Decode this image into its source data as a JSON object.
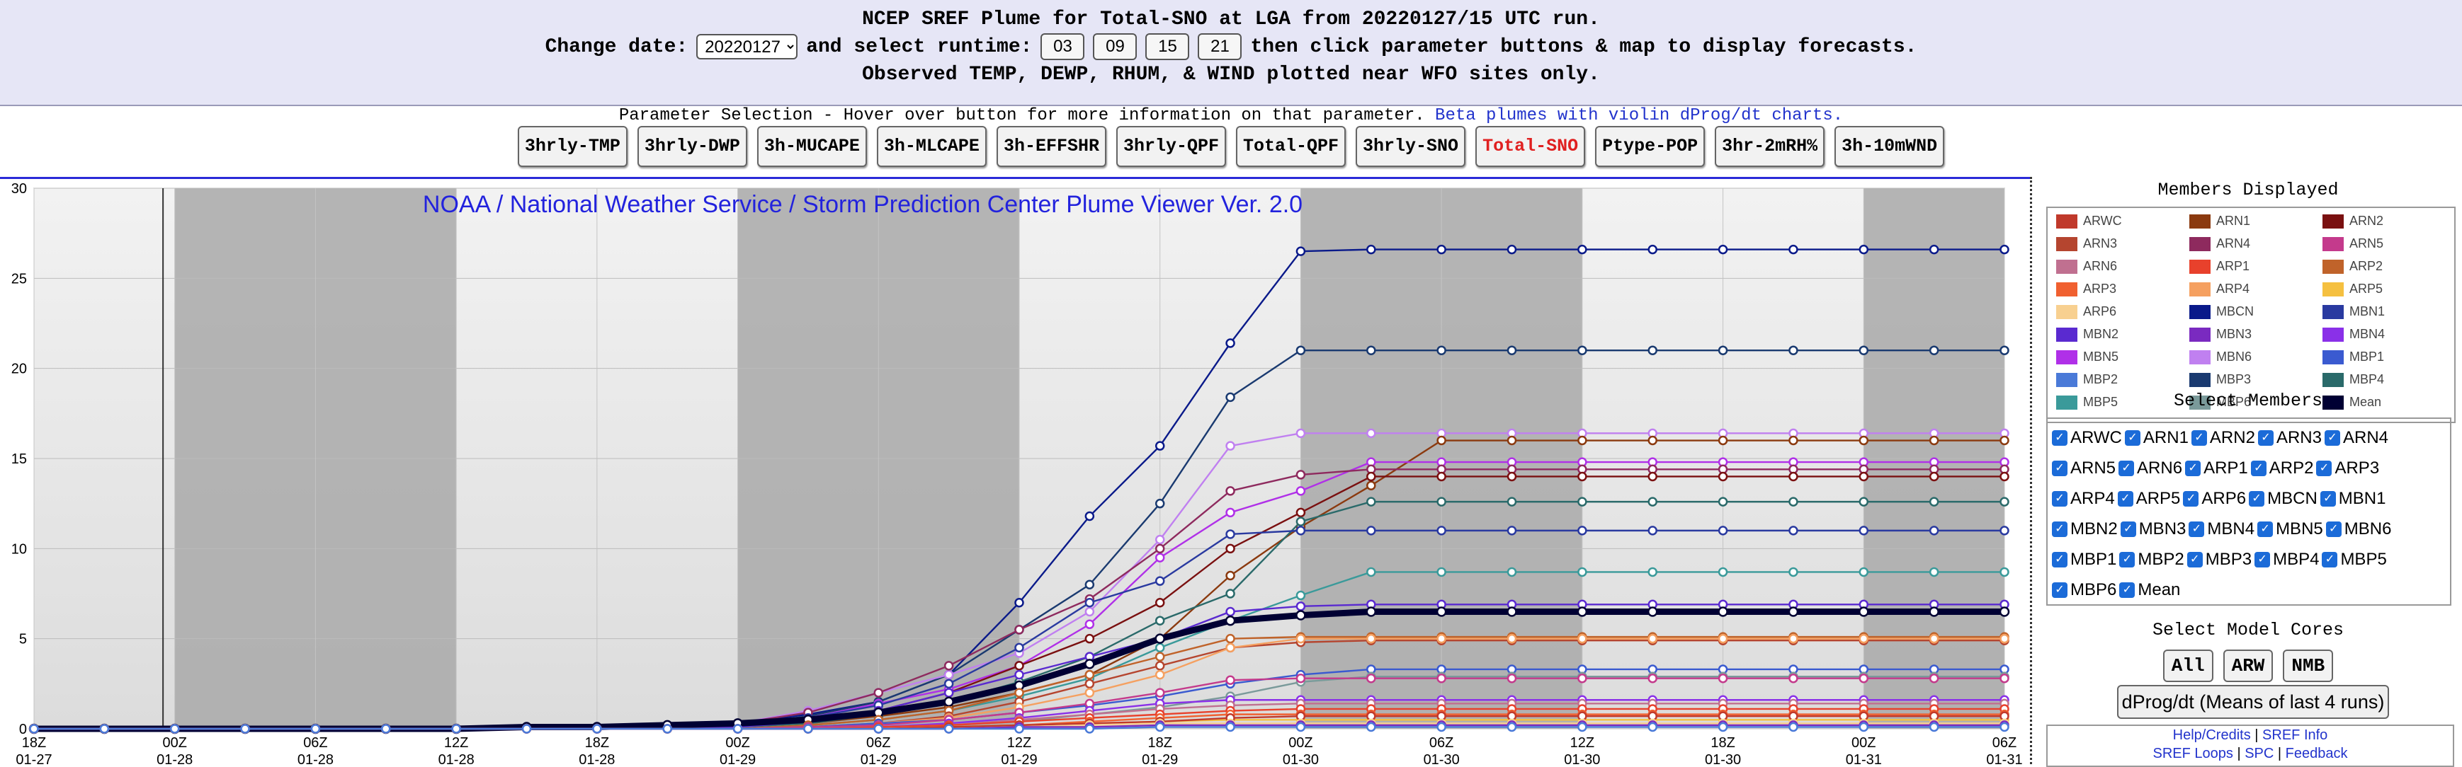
{
  "header": {
    "line1": "NCEP SREF Plume for Total-SNO at LGA from 20220127/15 UTC run.",
    "change_date_label": "Change date:",
    "date_value": "20220127",
    "select_runtime_label": "and select runtime:",
    "runtimes": [
      "03",
      "09",
      "15",
      "21"
    ],
    "line2_tail": "then click parameter buttons & map to display forecasts.",
    "line3": "Observed TEMP, DEWP, RHUM, & WIND plotted near WFO sites only."
  },
  "params": {
    "title": "Parameter Selection - Hover over button for more information on that parameter.",
    "beta_link": "Beta plumes with violin dProg/dt charts.",
    "buttons": [
      "3hrly-TMP",
      "3hrly-DWP",
      "3h-MUCAPE",
      "3h-MLCAPE",
      "3h-EFFSHR",
      "3hrly-QPF",
      "Total-QPF",
      "3hrly-SNO",
      "Total-SNO",
      "Ptype-POP",
      "3hr-2mRH%",
      "3h-10mWND"
    ],
    "active": "Total-SNO"
  },
  "side": {
    "members_title": "Members Displayed",
    "select_title": "Select Members",
    "cores_title": "Select Model Cores",
    "core_buttons": [
      "All",
      "ARW",
      "NMB"
    ],
    "dprog_label": "dProg/dt (Means of last 4 runs)",
    "links_row1": [
      "Help/Credits",
      "SREF Info"
    ],
    "links_row2": [
      "SREF Loops",
      "SPC",
      "Feedback"
    ],
    "sep": "|"
  },
  "members": [
    {
      "name": "ARWC",
      "color": "#c0392b"
    },
    {
      "name": "ARN1",
      "color": "#8b3a0f"
    },
    {
      "name": "ARN2",
      "color": "#7a1010"
    },
    {
      "name": "ARN3",
      "color": "#b5452f"
    },
    {
      "name": "ARN4",
      "color": "#8e2a5e"
    },
    {
      "name": "ARN5",
      "color": "#c43a8c"
    },
    {
      "name": "ARN6",
      "color": "#c07090"
    },
    {
      "name": "ARP1",
      "color": "#e8412c"
    },
    {
      "name": "ARP2",
      "color": "#c0632a"
    },
    {
      "name": "ARP3",
      "color": "#f06030"
    },
    {
      "name": "ARP4",
      "color": "#f5a060"
    },
    {
      "name": "ARP5",
      "color": "#f5c040"
    },
    {
      "name": "ARP6",
      "color": "#f8d090"
    },
    {
      "name": "MBCN",
      "color": "#0a1a8a"
    },
    {
      "name": "MBN1",
      "color": "#2a3aa0"
    },
    {
      "name": "MBN2",
      "color": "#5a2ad0"
    },
    {
      "name": "MBN3",
      "color": "#7a2ac0"
    },
    {
      "name": "MBN4",
      "color": "#8a30e8"
    },
    {
      "name": "MBN5",
      "color": "#b030e8"
    },
    {
      "name": "MBN6",
      "color": "#c080f0"
    },
    {
      "name": "MBP1",
      "color": "#3a5ad0"
    },
    {
      "name": "MBP2",
      "color": "#4a7ad8"
    },
    {
      "name": "MBP3",
      "color": "#1a3a70"
    },
    {
      "name": "MBP4",
      "color": "#2a6a6a"
    },
    {
      "name": "MBP5",
      "color": "#3a9a9a"
    },
    {
      "name": "MBP6",
      "color": "#7a9a9a"
    },
    {
      "name": "Mean",
      "color": "#000033"
    }
  ],
  "chart_data": {
    "type": "line",
    "title": "NOAA / National Weather Service / Storm Prediction Center Plume Viewer Ver. 2.0",
    "ylim": [
      0,
      30
    ],
    "yticks": [
      0,
      5,
      10,
      15,
      20,
      25,
      30
    ],
    "xticks": [
      {
        "t": "18Z",
        "d": "01-27"
      },
      {
        "t": "00Z",
        "d": "01-28"
      },
      {
        "t": "06Z",
        "d": "01-28"
      },
      {
        "t": "12Z",
        "d": "01-28"
      },
      {
        "t": "18Z",
        "d": "01-28"
      },
      {
        "t": "00Z",
        "d": "01-29"
      },
      {
        "t": "06Z",
        "d": "01-29"
      },
      {
        "t": "12Z",
        "d": "01-29"
      },
      {
        "t": "18Z",
        "d": "01-29"
      },
      {
        "t": "00Z",
        "d": "01-30"
      },
      {
        "t": "06Z",
        "d": "01-30"
      },
      {
        "t": "12Z",
        "d": "01-30"
      },
      {
        "t": "18Z",
        "d": "01-30"
      },
      {
        "t": "00Z",
        "d": "01-31"
      },
      {
        "t": "06Z",
        "d": "01-31"
      }
    ],
    "x_hours": [
      0,
      3,
      6,
      9,
      12,
      15,
      18,
      21,
      24,
      27,
      30,
      33,
      36,
      39,
      42,
      45,
      48,
      51,
      54,
      57,
      60,
      63,
      66,
      69,
      72,
      75,
      78,
      81,
      84
    ],
    "shaded_periods_hours": [
      [
        6,
        18
      ],
      [
        30,
        42
      ],
      [
        54,
        66
      ],
      [
        78,
        84
      ]
    ],
    "init_marker_hour": 5.5,
    "series": [
      {
        "name": "MBCN",
        "values": [
          0,
          0,
          0,
          0,
          0,
          0,
          0,
          0,
          0,
          0,
          0.3,
          0.8,
          1.5,
          3,
          7,
          11.8,
          15.7,
          21.4,
          26.5,
          26.6,
          26.6,
          26.6,
          26.6,
          26.6,
          26.6,
          26.6,
          26.6,
          26.6,
          26.6
        ]
      },
      {
        "name": "MBP3",
        "values": [
          0,
          0,
          0,
          0,
          0,
          0,
          0,
          0,
          0,
          0,
          0.2,
          0.7,
          1.5,
          3,
          5.5,
          8,
          12.5,
          18.4,
          21,
          21,
          21,
          21,
          21,
          21,
          21,
          21,
          21,
          21,
          21
        ]
      },
      {
        "name": "MBN6",
        "values": [
          0,
          0,
          0,
          0,
          0,
          0,
          0,
          0,
          0,
          0,
          0.3,
          1,
          2,
          3,
          4.2,
          6.5,
          10.5,
          15.7,
          16.4,
          16.4,
          16.4,
          16.4,
          16.4,
          16.4,
          16.4,
          16.4,
          16.4,
          16.4,
          16.4
        ]
      },
      {
        "name": "ARN1",
        "values": [
          0,
          0,
          0,
          0,
          0,
          0,
          0,
          0,
          0,
          0,
          0.1,
          0.3,
          0.7,
          1.2,
          2,
          3,
          5,
          8.5,
          11.2,
          13.5,
          16,
          16,
          16,
          16,
          16,
          16,
          16,
          16,
          16
        ]
      },
      {
        "name": "MBN5",
        "values": [
          0,
          0,
          0,
          0,
          0,
          0,
          0,
          0,
          0,
          0,
          0.2,
          0.6,
          1.4,
          2.2,
          3.5,
          5.8,
          9.5,
          12,
          13.2,
          14.8,
          14.8,
          14.8,
          14.8,
          14.8,
          14.8,
          14.8,
          14.8,
          14.8,
          14.8
        ]
      },
      {
        "name": "ARN4",
        "values": [
          0,
          0,
          0,
          0,
          0,
          0,
          0,
          0,
          0,
          0,
          0.3,
          0.9,
          2,
          3.5,
          5.5,
          7.2,
          10,
          13.2,
          14.1,
          14.4,
          14.4,
          14.4,
          14.4,
          14.4,
          14.4,
          14.4,
          14.4,
          14.4,
          14.4
        ]
      },
      {
        "name": "ARN2",
        "values": [
          0,
          0,
          0,
          0,
          0,
          0,
          0,
          0,
          0,
          0,
          0.1,
          0.4,
          1,
          2,
          3.5,
          5,
          7,
          10,
          12,
          14,
          14,
          14,
          14,
          14,
          14,
          14,
          14,
          14,
          14
        ]
      },
      {
        "name": "MBP4",
        "values": [
          0,
          0,
          0,
          0,
          0,
          0,
          0,
          0,
          0,
          0,
          0.1,
          0.3,
          0.8,
          1.5,
          2.6,
          4,
          6,
          7.5,
          11.5,
          12.6,
          12.6,
          12.6,
          12.6,
          12.6,
          12.6,
          12.6,
          12.6,
          12.6,
          12.6
        ]
      },
      {
        "name": "MBN1",
        "values": [
          0,
          0,
          0,
          0,
          0,
          0,
          0,
          0,
          0,
          0,
          0.2,
          0.6,
          1.3,
          2.5,
          4.5,
          7,
          8.2,
          10.8,
          11,
          11,
          11,
          11,
          11,
          11,
          11,
          11,
          11,
          11,
          11
        ]
      },
      {
        "name": "MBP5",
        "values": [
          0,
          0,
          0,
          0,
          0,
          0,
          0,
          0,
          0,
          0,
          0,
          0.2,
          0.5,
          1,
          1.8,
          2.8,
          4.5,
          6,
          7.4,
          8.7,
          8.7,
          8.7,
          8.7,
          8.7,
          8.7,
          8.7,
          8.7,
          8.7,
          8.7
        ]
      },
      {
        "name": "MBN2",
        "values": [
          0,
          0,
          0,
          0,
          0,
          0,
          0,
          0,
          0,
          0,
          0.1,
          0.4,
          1,
          2,
          3,
          4,
          5,
          6.5,
          6.8,
          6.9,
          6.9,
          6.9,
          6.9,
          6.9,
          6.9,
          6.9,
          6.9,
          6.9,
          6.9
        ]
      },
      {
        "name": "Mean",
        "values": [
          0,
          0,
          0,
          0,
          0,
          0,
          0,
          0.1,
          0.1,
          0.2,
          0.3,
          0.5,
          0.9,
          1.5,
          2.4,
          3.6,
          5,
          6,
          6.3,
          6.5,
          6.5,
          6.5,
          6.5,
          6.5,
          6.5,
          6.5,
          6.5,
          6.5,
          6.5
        ]
      },
      {
        "name": "ARP2",
        "values": [
          0,
          0,
          0,
          0,
          0,
          0,
          0,
          0,
          0,
          0,
          0,
          0.2,
          0.5,
          1,
          2,
          3,
          4,
          5,
          5.1,
          5.1,
          5.1,
          5.1,
          5.1,
          5.1,
          5.1,
          5.1,
          5.1,
          5.1,
          5.1
        ]
      },
      {
        "name": "ARN3",
        "values": [
          0,
          0,
          0,
          0,
          0,
          0,
          0,
          0,
          0,
          0,
          0,
          0.1,
          0.3,
          0.7,
          1.5,
          2.5,
          3.5,
          4.5,
          4.8,
          4.9,
          4.9,
          4.9,
          4.9,
          4.9,
          4.9,
          4.9,
          4.9,
          4.9,
          4.9
        ]
      },
      {
        "name": "ARP4",
        "values": [
          0,
          0,
          0,
          0,
          0,
          0,
          0,
          0,
          0,
          0,
          0,
          0.1,
          0.3,
          0.6,
          1.2,
          2,
          3,
          4.5,
          5,
          5,
          5,
          5,
          5,
          5,
          5,
          5,
          5,
          5,
          5
        ]
      },
      {
        "name": "MBP1",
        "values": [
          0,
          0,
          0,
          0,
          0,
          0,
          0,
          0,
          0,
          0,
          0,
          0.1,
          0.3,
          0.5,
          0.9,
          1.3,
          1.8,
          2.5,
          3,
          3.3,
          3.3,
          3.3,
          3.3,
          3.3,
          3.3,
          3.3,
          3.3,
          3.3,
          3.3
        ]
      },
      {
        "name": "MBP6",
        "values": [
          0,
          0,
          0,
          0,
          0,
          0,
          0,
          0,
          0,
          0,
          0,
          0,
          0.1,
          0.2,
          0.4,
          0.8,
          1.2,
          1.8,
          2.6,
          2.9,
          2.9,
          2.9,
          2.9,
          2.9,
          2.9,
          2.9,
          2.9,
          2.9,
          2.9
        ]
      },
      {
        "name": "ARN5",
        "values": [
          0,
          0,
          0,
          0,
          0,
          0,
          0,
          0,
          0,
          0,
          0,
          0.1,
          0.2,
          0.5,
          0.9,
          1.4,
          2,
          2.7,
          2.8,
          2.8,
          2.8,
          2.8,
          2.8,
          2.8,
          2.8,
          2.8,
          2.8,
          2.8,
          2.8
        ]
      },
      {
        "name": "MBN4",
        "values": [
          0,
          0,
          0,
          0,
          0,
          0,
          0,
          0,
          0,
          0,
          0,
          0,
          0.1,
          0.3,
          0.6,
          1,
          1.4,
          1.6,
          1.6,
          1.6,
          1.6,
          1.6,
          1.6,
          1.6,
          1.6,
          1.6,
          1.6,
          1.6,
          1.6
        ]
      },
      {
        "name": "ARN6",
        "values": [
          0,
          0,
          0,
          0,
          0,
          0,
          0,
          0,
          0,
          0,
          0,
          0,
          0.1,
          0.2,
          0.5,
          0.8,
          1.1,
          1.3,
          1.4,
          1.4,
          1.4,
          1.4,
          1.4,
          1.4,
          1.4,
          1.4,
          1.4,
          1.4,
          1.4
        ]
      },
      {
        "name": "ARP1",
        "values": [
          0,
          0,
          0,
          0,
          0,
          0,
          0,
          0,
          0,
          0,
          0,
          0,
          0.1,
          0.2,
          0.4,
          0.6,
          0.8,
          1,
          1.1,
          1.1,
          1.1,
          1.1,
          1.1,
          1.1,
          1.1,
          1.1,
          1.1,
          1.1,
          1.1
        ]
      },
      {
        "name": "ARP3",
        "values": [
          0,
          0,
          0,
          0,
          0,
          0,
          0,
          0,
          0,
          0,
          0,
          0,
          0,
          0.1,
          0.2,
          0.4,
          0.6,
          0.8,
          0.8,
          0.8,
          0.8,
          0.8,
          0.8,
          0.8,
          0.8,
          0.8,
          0.8,
          0.8,
          0.8
        ]
      },
      {
        "name": "ARP5",
        "values": [
          0,
          0,
          0,
          0,
          0,
          0,
          0,
          0,
          0,
          0,
          0,
          0,
          0,
          0.1,
          0.2,
          0.3,
          0.4,
          0.5,
          0.5,
          0.5,
          0.5,
          0.5,
          0.5,
          0.5,
          0.5,
          0.5,
          0.5,
          0.5,
          0.5
        ]
      },
      {
        "name": "ARWC",
        "values": [
          0,
          0,
          0,
          0,
          0,
          0,
          0,
          0,
          0,
          0,
          0,
          0,
          0,
          0.1,
          0.2,
          0.3,
          0.4,
          0.6,
          0.7,
          0.7,
          0.7,
          0.7,
          0.7,
          0.7,
          0.7,
          0.7,
          0.7,
          0.7,
          0.7
        ]
      },
      {
        "name": "ARP6",
        "values": [
          0,
          0,
          0,
          0,
          0,
          0,
          0,
          0,
          0,
          0,
          0,
          0,
          0,
          0,
          0.1,
          0.2,
          0.3,
          0.3,
          0.3,
          0.3,
          0.3,
          0.3,
          0.3,
          0.3,
          0.3,
          0.3,
          0.3,
          0.3,
          0.3
        ]
      },
      {
        "name": "MBN3",
        "values": [
          0,
          0,
          0,
          0,
          0,
          0,
          0,
          0,
          0,
          0,
          0,
          0,
          0,
          0,
          0.1,
          0.1,
          0.2,
          0.2,
          0.2,
          0.2,
          0.2,
          0.2,
          0.2,
          0.2,
          0.2,
          0.2,
          0.2,
          0.2,
          0.2
        ]
      },
      {
        "name": "MBP2",
        "values": [
          0,
          0,
          0,
          0,
          0,
          0,
          0,
          0,
          0,
          0,
          0,
          0,
          0,
          0,
          0,
          0,
          0.1,
          0.1,
          0.1,
          0.1,
          0.1,
          0.1,
          0.1,
          0.1,
          0.1,
          0.1,
          0.1,
          0.1,
          0.1
        ]
      }
    ]
  }
}
